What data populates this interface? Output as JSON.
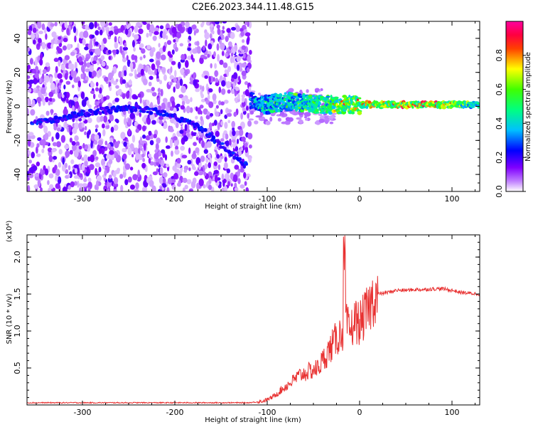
{
  "title": "C2E6.2023.344.11.48.G15",
  "chart_data": [
    {
      "type": "heatmap",
      "xlabel": "Height of straight line (km)",
      "ylabel": "Frequency (Hz)",
      "xlim": [
        -360,
        130
      ],
      "ylim": [
        -50,
        50
      ],
      "x_ticks": [
        -300,
        -200,
        -100,
        0,
        100
      ],
      "x_tick_labels": [
        "-300",
        "-200",
        "-100",
        "0",
        "100"
      ],
      "y_ticks": [
        -40,
        -20,
        0,
        20,
        40
      ],
      "y_tick_labels": [
        "-40",
        "-20",
        "0",
        "20",
        "40"
      ],
      "colorbar": {
        "label": "Normalized spectral amplitude",
        "range": [
          0,
          1
        ],
        "ticks": [
          0.0,
          0.2,
          0.4,
          0.6,
          0.8
        ],
        "tick_labels": [
          "0.0",
          "0.2",
          "0.4",
          "0.6",
          "0.8"
        ],
        "colormap": [
          "#ffffff",
          "#8000ff",
          "#0000ff",
          "#00ffff",
          "#00ff00",
          "#ffff00",
          "#ff0000",
          "#ff00ff"
        ]
      },
      "noise_region_x": [
        -360,
        -118
      ],
      "signal_ridge": [
        {
          "x": -355,
          "y": -10
        },
        {
          "x": -330,
          "y": -8
        },
        {
          "x": -300,
          "y": -4
        },
        {
          "x": -270,
          "y": -2
        },
        {
          "x": -240,
          "y": -1
        },
        {
          "x": -210,
          "y": -4
        },
        {
          "x": -180,
          "y": -10
        },
        {
          "x": -160,
          "y": -18
        },
        {
          "x": -140,
          "y": -27
        },
        {
          "x": -122,
          "y": -35
        }
      ],
      "signal_band": [
        {
          "x": -118,
          "y": 4,
          "amp": 0.45
        },
        {
          "x": -100,
          "y": 1,
          "amp": 0.55
        },
        {
          "x": -80,
          "y": 3,
          "amp": 0.6
        },
        {
          "x": -60,
          "y": 2,
          "amp": 0.65
        },
        {
          "x": -40,
          "y": 1,
          "amp": 0.7
        },
        {
          "x": -20,
          "y": 1,
          "amp": 0.85
        },
        {
          "x": 0,
          "y": 1,
          "amp": 0.85
        },
        {
          "x": 30,
          "y": 1,
          "amp": 0.9
        },
        {
          "x": 60,
          "y": 1,
          "amp": 0.95
        },
        {
          "x": 95,
          "y": 1,
          "amp": 0.95
        },
        {
          "x": 130,
          "y": 1,
          "amp": 0.55
        }
      ]
    },
    {
      "type": "line",
      "xlabel": "Height of straight line (km)",
      "ylabel": "SNR (10 * v/v)",
      "y_scale_note": "(x10⁴)",
      "xlim": [
        -360,
        130
      ],
      "ylim": [
        0,
        2.3
      ],
      "x_ticks": [
        -300,
        -200,
        -100,
        0,
        100
      ],
      "x_tick_labels": [
        "-300",
        "-200",
        "-100",
        "0",
        "100"
      ],
      "y_ticks": [
        0.5,
        1.0,
        1.5,
        2.0
      ],
      "y_tick_labels": [
        "0.5",
        "1.0",
        "1.5",
        "2.0"
      ],
      "color": "#e83030",
      "series": [
        {
          "x": [
            -360,
            -300,
            -250,
            -200,
            -150,
            -120,
            -105,
            -95,
            -85,
            -75,
            -65,
            -55,
            -45,
            -35,
            -25,
            -18,
            -15,
            -10,
            -5,
            0,
            5,
            10,
            15,
            20,
            30,
            40,
            50,
            60,
            70,
            80,
            90,
            100,
            110,
            120,
            130
          ],
          "y": [
            0.03,
            0.03,
            0.03,
            0.03,
            0.03,
            0.03,
            0.05,
            0.1,
            0.2,
            0.3,
            0.4,
            0.45,
            0.5,
            0.7,
            0.9,
            1.0,
            1.1,
            1.0,
            1.15,
            1.1,
            1.2,
            1.3,
            1.45,
            1.5,
            1.52,
            1.55,
            1.55,
            1.56,
            1.56,
            1.57,
            1.57,
            1.55,
            1.52,
            1.51,
            1.5
          ]
        }
      ]
    }
  ]
}
